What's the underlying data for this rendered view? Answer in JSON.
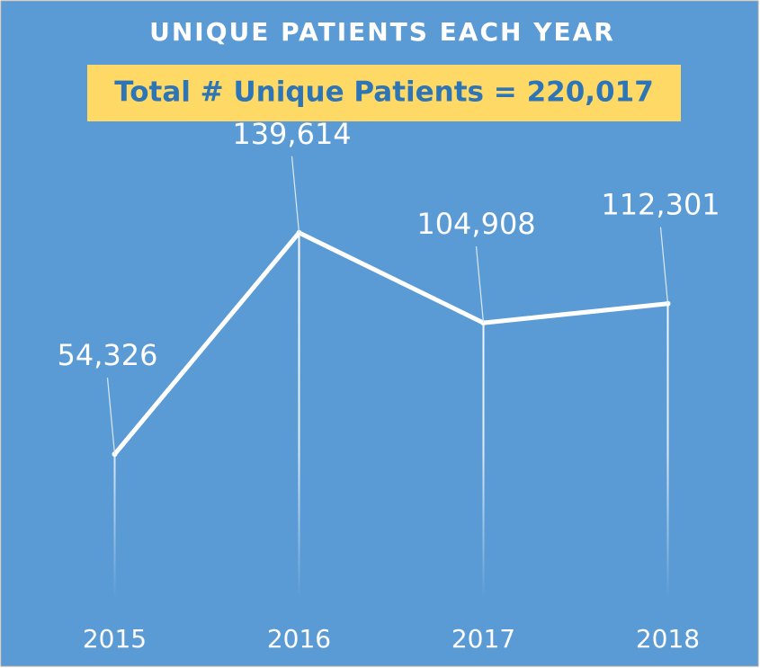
{
  "chart_data": {
    "type": "line",
    "title": "UNIQUE PATIENTS EACH YEAR",
    "subtitle": "Total # Unique Patients = 220,017",
    "categories": [
      "2015",
      "2016",
      "2017",
      "2018"
    ],
    "values": [
      54326,
      139614,
      104908,
      112301
    ],
    "value_labels": [
      "54,326",
      "139,614",
      "104,908",
      "112,301"
    ],
    "color": "#ffffff",
    "ylim": [
      0,
      160000
    ],
    "grid": false
  }
}
